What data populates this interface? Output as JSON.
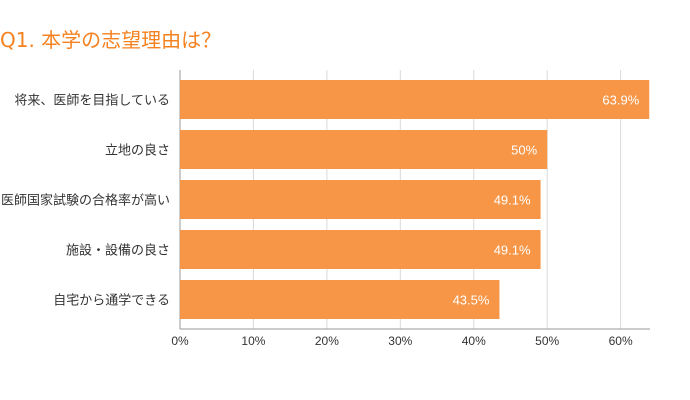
{
  "title": "Q1. 本学の志望理由は？",
  "colors": {
    "title": "#F58220",
    "bar": "#F79646",
    "bar_label": "#ffffff",
    "grid": "#d9d9d9",
    "axis": "#999999",
    "text": "#333333"
  },
  "chart_data": {
    "type": "bar",
    "orientation": "horizontal",
    "title": "Q1. 本学の志望理由は？",
    "categories": [
      "将来、医師を目指している",
      "立地の良さ",
      "医師国家試験の合格率が高い",
      "施設・設備の良さ",
      "自宅から通学できる"
    ],
    "values": [
      63.9,
      50,
      49.1,
      49.1,
      43.5
    ],
    "value_labels": [
      "63.9%",
      "50%",
      "49.1%",
      "49.1%",
      "43.5%"
    ],
    "xlim": [
      0,
      64
    ],
    "x_ticks": [
      0,
      10,
      20,
      30,
      40,
      50,
      60
    ],
    "x_tick_labels": [
      "0%",
      "10%",
      "20%",
      "30%",
      "40%",
      "50%",
      "60%"
    ],
    "xlabel": "",
    "ylabel": "",
    "grid": true,
    "legend": "none"
  }
}
